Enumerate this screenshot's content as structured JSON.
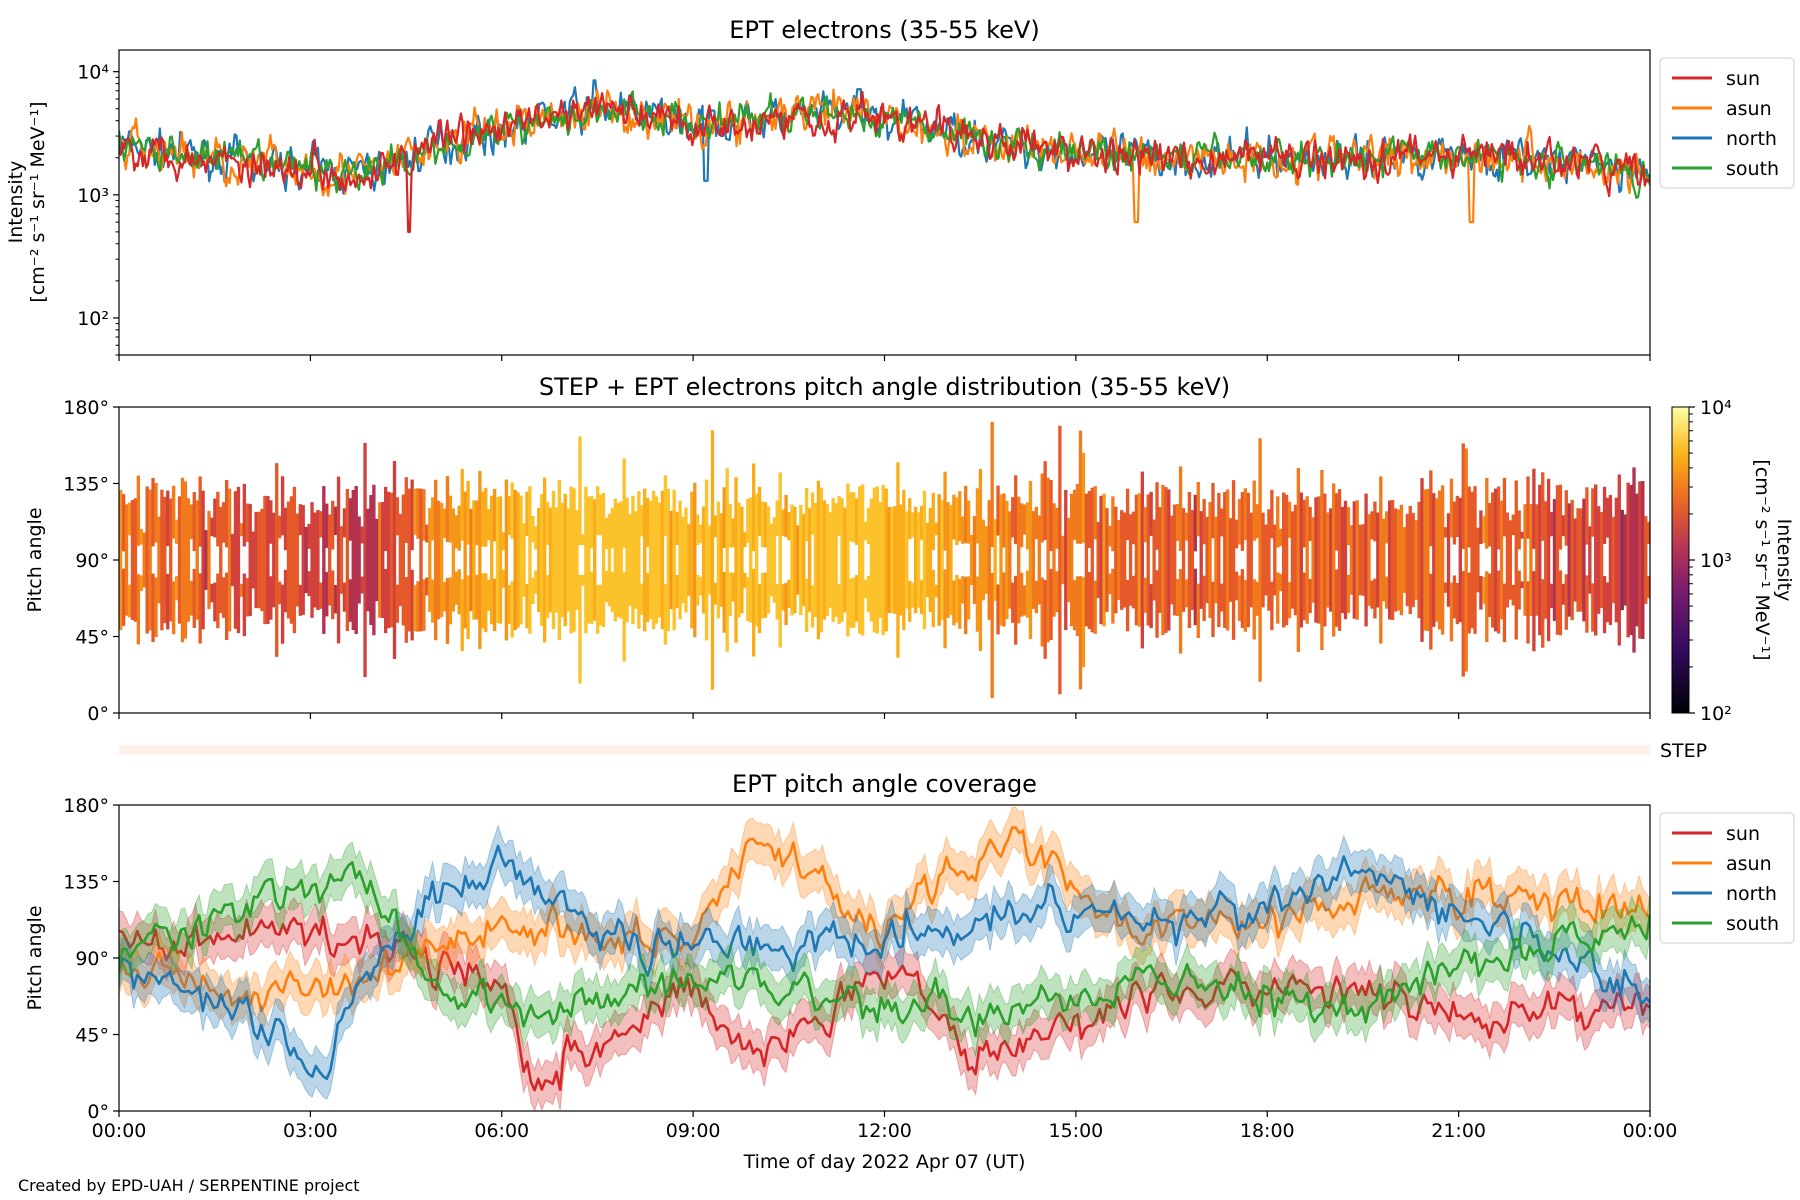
{
  "footer": "Created by EPD-UAH / SERPENTINE project",
  "chart_data": [
    {
      "type": "line",
      "title": "EPT electrons (35-55 keV)",
      "ylabel_line1": "Intensity",
      "ylabel_line2": "[cm⁻² s⁻¹ sr⁻¹ MeV⁻¹]",
      "yscale": "log",
      "ylim": [
        50,
        15000
      ],
      "yticks": [
        "10²",
        "10³",
        "10⁴"
      ],
      "ytick_values": [
        100,
        1000,
        10000
      ],
      "xlim_hours": [
        0,
        24
      ],
      "legend": {
        "placement": "outside-top-right",
        "entries": [
          "sun",
          "asun",
          "north",
          "south"
        ]
      },
      "colors": {
        "sun": "#d62728",
        "asun": "#ff7f0e",
        "north": "#1f77b4",
        "south": "#2ca02c"
      },
      "baseline_trend": {
        "x_hours": [
          0,
          2,
          4,
          5,
          7.5,
          9,
          11.5,
          14,
          16,
          19,
          21,
          24
        ],
        "y": [
          2500,
          1800,
          1500,
          2500,
          5000,
          3800,
          4500,
          2500,
          2000,
          2000,
          2200,
          1500
        ]
      },
      "series": [
        {
          "name": "sun",
          "spread": 0.22
        },
        {
          "name": "asun",
          "spread": 0.25
        },
        {
          "name": "north",
          "spread": 0.22
        },
        {
          "name": "south",
          "spread": 0.2
        }
      ],
      "notable_points": [
        {
          "series": "north",
          "x_hours": 7.45,
          "y": 8500
        },
        {
          "series": "north",
          "x_hours": 11.6,
          "y": 7200
        },
        {
          "series": "sun",
          "x_hours": 4.55,
          "y": 500
        },
        {
          "series": "asun",
          "x_hours": 15.95,
          "y": 600
        },
        {
          "series": "asun",
          "x_hours": 21.2,
          "y": 600
        },
        {
          "series": "north",
          "x_hours": 9.2,
          "y": 1300
        }
      ]
    },
    {
      "type": "heatmap",
      "title": "STEP + EPT electrons pitch angle distribution (35-55 keV)",
      "ylabel": "Pitch angle",
      "ylim": [
        0,
        180
      ],
      "yticks": [
        "0°",
        "45°",
        "90°",
        "135°",
        "180°"
      ],
      "ytick_values": [
        0,
        45,
        90,
        135,
        180
      ],
      "colorbar": {
        "label_line1": "Intensity",
        "label_line2": "[cm⁻² s⁻¹ sr⁻¹ MeV⁻¹]",
        "scale": "log",
        "range": [
          100,
          10000
        ],
        "ticks": [
          "10²",
          "10³",
          "10⁴"
        ],
        "colormap": "inferno"
      },
      "band_center": 90,
      "band_halfwidth_deg": 35,
      "gap_halfwidth_deg": 10,
      "step_strip_label": "STEP"
    },
    {
      "type": "line",
      "title": "EPT pitch angle coverage",
      "ylabel": "Pitch angle",
      "xlabel": "Time of day 2022 Apr 07 (UT)",
      "ylim": [
        0,
        180
      ],
      "yticks": [
        "0°",
        "45°",
        "90°",
        "135°",
        "180°"
      ],
      "ytick_values": [
        0,
        45,
        90,
        135,
        180
      ],
      "xticks": [
        "00:00",
        "03:00",
        "06:00",
        "09:00",
        "12:00",
        "15:00",
        "18:00",
        "21:00",
        "00:00"
      ],
      "xtick_hours": [
        0,
        3,
        6,
        9,
        12,
        15,
        18,
        21,
        24
      ],
      "legend": {
        "placement": "outside-top-right",
        "entries": [
          "sun",
          "asun",
          "north",
          "south"
        ]
      },
      "band_halfwidth_deg": 12,
      "series": [
        {
          "name": "sun",
          "x_hours": [
            0,
            3,
            6,
            6.5,
            9,
            10,
            12,
            13.5,
            16,
            19,
            21,
            24
          ],
          "y": [
            100,
            110,
            80,
            20,
            70,
            35,
            85,
            30,
            70,
            70,
            55,
            65
          ]
        },
        {
          "name": "asun",
          "x_hours": [
            0,
            3,
            6,
            9,
            10,
            12,
            14,
            16,
            19,
            21,
            24
          ],
          "y": [
            80,
            70,
            110,
            100,
            160,
            110,
            160,
            105,
            120,
            130,
            115
          ]
        },
        {
          "name": "north",
          "x_hours": [
            0,
            3.3,
            4,
            6,
            7.5,
            10,
            13,
            15,
            17,
            19.5,
            21,
            24
          ],
          "y": [
            85,
            30,
            95,
            150,
            105,
            95,
            110,
            120,
            110,
            140,
            115,
            70
          ]
        },
        {
          "name": "south",
          "x_hours": [
            0,
            3.5,
            5,
            6.5,
            9,
            11,
            14,
            16,
            19,
            21,
            24
          ],
          "y": [
            90,
            145,
            70,
            60,
            80,
            70,
            55,
            80,
            60,
            85,
            110
          ]
        }
      ]
    }
  ]
}
